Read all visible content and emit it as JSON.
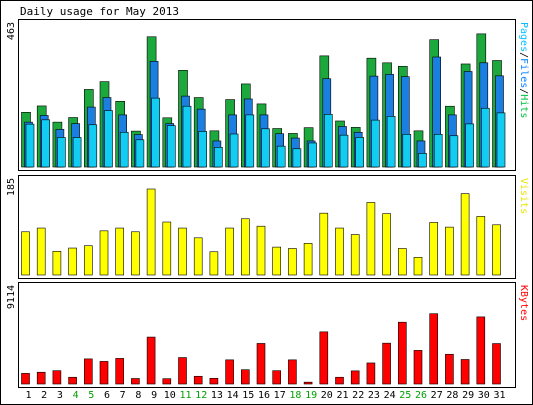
{
  "chart_data": {
    "type": "bar",
    "title": "Daily usage for May 2013",
    "days": [
      "1",
      "2",
      "3",
      "4",
      "5",
      "6",
      "7",
      "8",
      "9",
      "10",
      "11",
      "12",
      "13",
      "14",
      "15",
      "16",
      "17",
      "18",
      "19",
      "20",
      "21",
      "22",
      "23",
      "24",
      "25",
      "26",
      "27",
      "28",
      "29",
      "30",
      "31"
    ],
    "weekend_days": [
      "4",
      "5",
      "11",
      "12",
      "18",
      "19",
      "25",
      "26"
    ],
    "panels": [
      {
        "id": "hits-panel",
        "max_label": "463",
        "ymax": 463,
        "right_label": [
          "Pages",
          "/",
          "Files",
          "/",
          "Hits"
        ],
        "right_label_colors": [
          "#00c0ff",
          "#000000",
          "#0080ff",
          "#000000",
          "#00c040"
        ],
        "series": [
          {
            "name": "Hits",
            "color": "#1ca83c",
            "values": [
              189,
              211,
              155,
              171,
              268,
              295,
              227,
              124,
              450,
              170,
              334,
              240,
              125,
              233,
              287,
              218,
              133,
              116,
              136,
              384,
              159,
              137,
              376,
              360,
              348,
              125,
              440,
              210,
              356,
              460,
              368
            ]
          },
          {
            "name": "Files",
            "color": "#1a7fe0",
            "values": [
              155,
              178,
              130,
              150,
              207,
              240,
              180,
              112,
              365,
              150,
              245,
              200,
              90,
              180,
              235,
              180,
              115,
              100,
              90,
              305,
              140,
              120,
              314,
              320,
              312,
              90,
              380,
              180,
              330,
              360,
              315
            ]
          },
          {
            "name": "Pages",
            "color": "#12ccf2",
            "values": [
              148,
              163,
              102,
              102,
              146,
              195,
              120,
              94,
              238,
              143,
              210,
              123,
              68,
              114,
              180,
              132,
              72,
              63,
              83,
              182,
              110,
              102,
              162,
              175,
              113,
              47,
              113,
              108,
              149,
              203,
              187
            ]
          }
        ]
      },
      {
        "id": "visits-panel",
        "max_label": "185",
        "ymax": 185,
        "right_label": [
          "Visits"
        ],
        "right_label_colors": [
          "#e6e600"
        ],
        "series": [
          {
            "name": "Visits",
            "color": "#ffff00",
            "values": [
              93,
              101,
              51,
              58,
              63,
              95,
              101,
              93,
              185,
              114,
              101,
              80,
              50,
              101,
              121,
              105,
              60,
              57,
              68,
              133,
              101,
              87,
              156,
              132,
              57,
              38,
              113,
              103,
              175,
              126,
              108
            ]
          }
        ]
      },
      {
        "id": "kbytes-panel",
        "max_label": "9114",
        "ymax": 9114,
        "right_label": [
          "KBytes"
        ],
        "right_label_colors": [
          "#ff0000"
        ],
        "series": [
          {
            "name": "KBytes",
            "color": "#ff0000",
            "values": [
              1100,
              1220,
              1380,
              700,
              2600,
              2340,
              2650,
              570,
              4860,
              550,
              2740,
              800,
              590,
              2500,
              1480,
              4200,
              1380,
              2500,
              190,
              5400,
              700,
              1360,
              2180,
              4230,
              6400,
              3480,
              7280,
              3080,
              2540,
              6950,
              4190
            ]
          }
        ]
      }
    ]
  }
}
